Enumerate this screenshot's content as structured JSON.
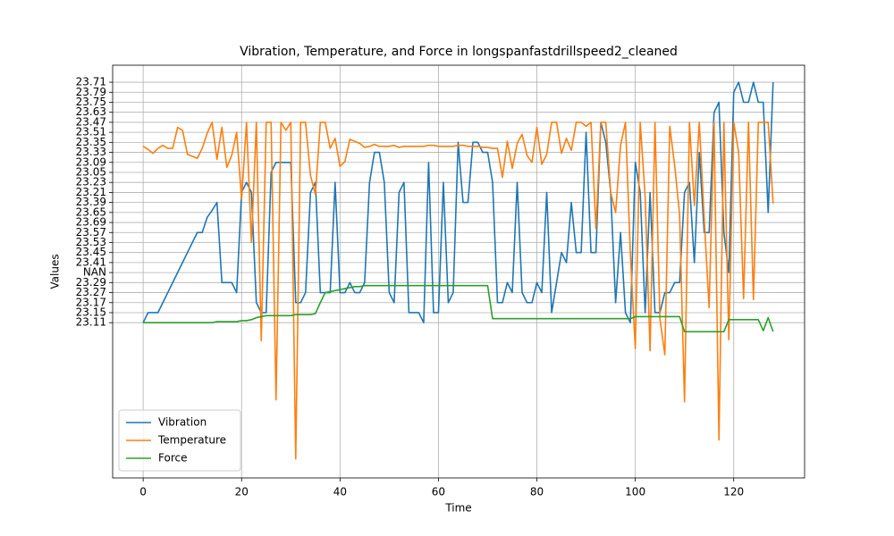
{
  "chart_data": {
    "type": "line",
    "title": "Vibration, Temperature, and Force in longspanfastdrillspeed2_cleaned",
    "x_label": "Time",
    "y_label": "Values",
    "x": [
      0,
      1,
      2,
      3,
      4,
      5,
      6,
      7,
      8,
      9,
      10,
      11,
      12,
      13,
      14,
      15,
      16,
      17,
      18,
      19,
      20,
      21,
      22,
      23,
      24,
      25,
      26,
      27,
      28,
      29,
      30,
      31,
      32,
      33,
      34,
      35,
      36,
      37,
      38,
      39,
      40,
      41,
      42,
      43,
      44,
      45,
      46,
      47,
      48,
      49,
      50,
      51,
      52,
      53,
      54,
      55,
      56,
      57,
      58,
      59,
      60,
      61,
      62,
      63,
      64,
      65,
      66,
      67,
      68,
      69,
      70,
      71,
      72,
      73,
      74,
      75,
      76,
      77,
      78,
      79,
      80,
      81,
      82,
      83,
      84,
      85,
      86,
      87,
      88,
      89,
      90,
      91,
      92,
      93,
      94,
      95,
      96,
      97,
      98,
      99,
      100,
      101,
      102,
      103,
      104,
      105,
      106,
      107,
      108,
      109,
      110,
      111,
      112,
      113,
      114,
      115,
      116,
      117,
      118,
      119,
      120,
      121,
      122,
      123,
      124,
      125,
      126,
      127,
      128
    ],
    "xlim": [
      -6.2,
      134.4
    ],
    "xticks": [
      0,
      20,
      40,
      60,
      80,
      100,
      120
    ],
    "ylim": [
      -15.5,
      25.7
    ],
    "yticks": [
      {
        "value": 0,
        "label": "23.11"
      },
      {
        "value": 1,
        "label": "23.15"
      },
      {
        "value": 2,
        "label": "23.17"
      },
      {
        "value": 3,
        "label": "23.27"
      },
      {
        "value": 4,
        "label": "23.29"
      },
      {
        "value": 5,
        "label": "NAN"
      },
      {
        "value": 6,
        "label": "23.41"
      },
      {
        "value": 7,
        "label": "23.45"
      },
      {
        "value": 8,
        "label": "23.53"
      },
      {
        "value": 9,
        "label": "23.57"
      },
      {
        "value": 10,
        "label": "23.69"
      },
      {
        "value": 11,
        "label": "23.65"
      },
      {
        "value": 12,
        "label": "23.39"
      },
      {
        "value": 13,
        "label": "23.21"
      },
      {
        "value": 14,
        "label": "23.23"
      },
      {
        "value": 15,
        "label": "23.05"
      },
      {
        "value": 16,
        "label": "23.09"
      },
      {
        "value": 17,
        "label": "23.33"
      },
      {
        "value": 18,
        "label": "23.35"
      },
      {
        "value": 19,
        "label": "23.51"
      },
      {
        "value": 20,
        "label": "23.47"
      },
      {
        "value": 21,
        "label": "23.63"
      },
      {
        "value": 22,
        "label": "23.75"
      },
      {
        "value": 23,
        "label": "23.79"
      },
      {
        "value": 24,
        "label": "23.71"
      }
    ],
    "grid": true,
    "legend": "lower left",
    "series": [
      {
        "name": "Vibration",
        "color": "#1f77b4",
        "values": [
          0,
          1,
          1,
          1,
          2,
          3,
          4,
          5,
          6,
          7,
          8,
          9,
          9,
          10.5,
          11.2,
          12,
          4,
          4,
          4,
          3,
          13,
          14,
          13,
          2,
          1,
          1,
          15,
          16,
          16,
          16,
          16,
          2,
          2,
          3,
          13,
          14,
          3,
          3,
          3,
          14,
          3,
          3,
          4,
          3,
          3,
          4,
          14,
          17,
          17,
          14,
          3,
          2,
          13,
          14,
          1,
          1,
          1,
          0,
          16,
          1,
          1,
          14,
          2,
          3,
          18,
          12,
          12,
          18,
          18,
          17,
          17,
          14,
          2,
          2,
          4,
          3,
          14,
          3,
          2,
          2,
          4,
          3,
          13,
          1,
          4,
          7,
          6,
          12,
          7,
          7,
          19,
          7,
          7,
          20,
          18,
          13,
          2,
          9,
          1,
          0,
          16,
          13,
          1,
          13,
          1,
          1,
          3,
          3,
          4,
          4,
          13,
          14,
          6,
          17,
          9,
          9,
          21,
          22,
          9,
          5,
          23,
          24,
          22,
          22,
          24,
          22,
          22,
          11,
          24
        ]
      },
      {
        "name": "Temperature",
        "color": "#ff7f0e",
        "values": [
          17.6,
          17.3,
          16.9,
          17.4,
          17.7,
          17.4,
          17.4,
          19.5,
          19.2,
          16.8,
          16.6,
          16.4,
          17.4,
          18.9,
          20,
          16.3,
          19.5,
          15.5,
          16.7,
          19,
          12.3,
          20,
          8,
          20,
          -1.8,
          20,
          20,
          -7.7,
          20,
          19.2,
          20,
          -13.6,
          20,
          20,
          14.7,
          12.8,
          20,
          20,
          17.4,
          18.4,
          15.6,
          16.1,
          18.3,
          18.1,
          17.9,
          17.5,
          17.6,
          17.8,
          17.6,
          17.6,
          17.6,
          17.7,
          17.5,
          17.6,
          17.6,
          17.6,
          17.6,
          17.6,
          17.7,
          17.7,
          17.6,
          17.6,
          17.6,
          17.6,
          17.7,
          17.7,
          17.6,
          17.6,
          17.6,
          17.5,
          17.5,
          17.4,
          17.4,
          14.5,
          18.1,
          15.4,
          17.9,
          18.8,
          16.7,
          16,
          19.5,
          15.8,
          16.8,
          20,
          20,
          16.9,
          18.4,
          17.2,
          20,
          20,
          19.6,
          20,
          9.4,
          20,
          20,
          13,
          11,
          17.7,
          20,
          6.8,
          -2.6,
          20,
          12.6,
          -2.8,
          20,
          0.4,
          -3.2,
          19.6,
          15.7,
          10.8,
          -7.9,
          20,
          11.7,
          20,
          10.4,
          1.5,
          20,
          -11.7,
          20,
          -1.7,
          20,
          17,
          2.4,
          20,
          2.3,
          20,
          20,
          20,
          11.9
        ]
      },
      {
        "name": "Force",
        "color": "#2ca02c",
        "values": [
          0,
          0,
          0,
          0,
          0,
          0,
          0,
          0,
          0,
          0,
          0,
          0,
          0,
          0,
          0,
          0.1,
          0.1,
          0.1,
          0.1,
          0.1,
          0.2,
          0.2,
          0.3,
          0.5,
          0.6,
          0.7,
          0.7,
          0.7,
          0.7,
          0.7,
          0.7,
          0.8,
          0.8,
          0.8,
          0.8,
          0.9,
          2,
          3,
          3.1,
          3.2,
          3.3,
          3.4,
          3.5,
          3.6,
          3.6,
          3.7,
          3.7,
          3.7,
          3.7,
          3.7,
          3.7,
          3.7,
          3.7,
          3.7,
          3.7,
          3.7,
          3.7,
          3.7,
          3.7,
          3.7,
          3.7,
          3.7,
          3.7,
          3.7,
          3.7,
          3.7,
          3.7,
          3.7,
          3.7,
          3.7,
          3.7,
          0.4,
          0.4,
          0.4,
          0.4,
          0.4,
          0.4,
          0.4,
          0.4,
          0.4,
          0.4,
          0.4,
          0.4,
          0.4,
          0.4,
          0.4,
          0.4,
          0.4,
          0.4,
          0.4,
          0.4,
          0.4,
          0.4,
          0.4,
          0.4,
          0.4,
          0.4,
          0.4,
          0.4,
          0.4,
          0.6,
          0.6,
          0.6,
          0.6,
          0.6,
          0.6,
          0.6,
          0.6,
          0.6,
          0.6,
          -0.9,
          -0.9,
          -0.9,
          -0.9,
          -0.9,
          -0.9,
          -0.9,
          -0.9,
          -0.9,
          0.3,
          0.3,
          0.3,
          0.3,
          0.3,
          0.3,
          0.3,
          -0.8,
          0.5,
          -0.9
        ]
      }
    ]
  }
}
